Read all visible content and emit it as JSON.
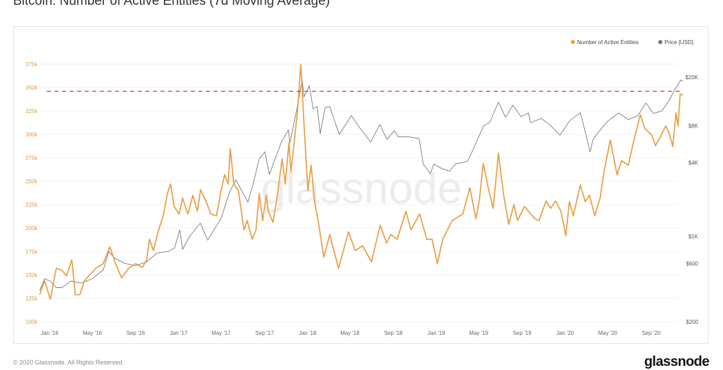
{
  "title": "Bitcoin: Number of Active Entities (7d Moving Average)",
  "footer": "© 2020 Glassnode. All Rights Reserved.",
  "logo": "glassnode",
  "chart_data": {
    "type": "line",
    "title": "Bitcoin: Number of Active Entities (7d Moving Average)",
    "watermark": "glassnode",
    "legend": {
      "placement": "top-right",
      "entries": [
        "Number of Active Entities",
        "Price [USD]"
      ]
    },
    "grid": true,
    "x_ticks": [
      "Jan '16",
      "May '16",
      "Sep '16",
      "Jan '17",
      "May '17",
      "Sep '17",
      "Jan '18",
      "May '18",
      "Sep '18",
      "Jan '19",
      "May '19",
      "Sep '19",
      "Jan '20",
      "May '20",
      "Sep '20"
    ],
    "x_tick_dates": [
      "2016-01-01",
      "2016-05-01",
      "2016-09-01",
      "2017-01-01",
      "2017-05-01",
      "2017-09-01",
      "2018-01-01",
      "2018-05-01",
      "2018-09-01",
      "2019-01-01",
      "2019-05-01",
      "2019-09-01",
      "2020-01-01",
      "2020-05-01",
      "2020-09-01"
    ],
    "y_left": {
      "ylim": [
        100000,
        375000
      ],
      "scale": "linear",
      "ticks": [
        "100k",
        "125k",
        "150k",
        "175k",
        "200k",
        "225k",
        "250k",
        "275k",
        "300k",
        "325k",
        "350k",
        "375k"
      ],
      "tick_values": [
        100000,
        125000,
        150000,
        175000,
        200000,
        225000,
        250000,
        275000,
        300000,
        325000,
        350000,
        375000
      ],
      "color": "#e09a3e"
    },
    "y_right": {
      "ylim": [
        200,
        20000
      ],
      "scale": "log",
      "ticks": [
        "$200",
        "$600",
        "$1K",
        "$4K",
        "$8K",
        "$20K"
      ],
      "tick_values": [
        200,
        600,
        1000,
        4000,
        8000,
        20000
      ],
      "color": "#555555"
    },
    "reference_line": {
      "value": 346000,
      "axis": "left",
      "style": "dashed",
      "color": "#d9262c"
    },
    "series": [
      {
        "name": "Number of Active Entities",
        "axis": "left",
        "color": "#e8a04a",
        "x": [
          "2015-12-04",
          "2015-12-18",
          "2016-01-03",
          "2016-01-20",
          "2016-02-05",
          "2016-02-18",
          "2016-03-04",
          "2016-03-14",
          "2016-03-27",
          "2016-04-09",
          "2016-05-11",
          "2016-06-01",
          "2016-06-20",
          "2016-07-04",
          "2016-07-23",
          "2016-08-12",
          "2016-09-01",
          "2016-09-20",
          "2016-10-02",
          "2016-10-10",
          "2016-10-21",
          "2016-11-05",
          "2016-11-18",
          "2016-11-30",
          "2016-12-09",
          "2016-12-19",
          "2017-01-02",
          "2017-01-12",
          "2017-01-27",
          "2017-02-10",
          "2017-02-23",
          "2017-03-04",
          "2017-03-20",
          "2017-04-02",
          "2017-04-18",
          "2017-05-01",
          "2017-05-11",
          "2017-05-21",
          "2017-05-27",
          "2017-06-06",
          "2017-06-19",
          "2017-07-05",
          "2017-07-14",
          "2017-07-28",
          "2017-08-08",
          "2017-08-17",
          "2017-08-27",
          "2017-09-06",
          "2017-09-12",
          "2017-09-25",
          "2017-10-05",
          "2017-10-21",
          "2017-10-30",
          "2017-11-09",
          "2017-11-15",
          "2017-11-23",
          "2017-12-03",
          "2017-12-13",
          "2017-12-22",
          "2018-01-02",
          "2018-01-11",
          "2018-01-21",
          "2018-02-01",
          "2018-02-16",
          "2018-03-05",
          "2018-03-30",
          "2018-04-27",
          "2018-05-16",
          "2018-06-06",
          "2018-07-01",
          "2018-07-26",
          "2018-08-13",
          "2018-08-25",
          "2018-09-12",
          "2018-10-07",
          "2018-10-21",
          "2018-11-15",
          "2018-12-05",
          "2018-12-20",
          "2019-01-04",
          "2019-01-19",
          "2019-02-15",
          "2019-03-17",
          "2019-04-06",
          "2019-04-23",
          "2019-05-03",
          "2019-05-14",
          "2019-05-28",
          "2019-06-11",
          "2019-06-26",
          "2019-07-10",
          "2019-07-25",
          "2019-08-09",
          "2019-08-19",
          "2019-09-08",
          "2019-10-07",
          "2019-10-19",
          "2019-11-08",
          "2019-11-21",
          "2019-12-05",
          "2019-12-20",
          "2020-01-03",
          "2020-01-13",
          "2020-01-24",
          "2020-02-13",
          "2020-02-27",
          "2020-03-10",
          "2020-03-25",
          "2020-04-09",
          "2020-04-21",
          "2020-05-08",
          "2020-05-27",
          "2020-06-09",
          "2020-06-28",
          "2020-07-11",
          "2020-08-01",
          "2020-08-14",
          "2020-09-03",
          "2020-09-13",
          "2020-09-25",
          "2020-10-12",
          "2020-10-22",
          "2020-11-01",
          "2020-11-10",
          "2020-11-16",
          "2020-11-22",
          "2020-11-30"
        ],
        "y": [
          129000,
          144000,
          124000,
          157000,
          155000,
          149000,
          166000,
          129000,
          129000,
          144000,
          157000,
          162000,
          180000,
          164000,
          147000,
          157000,
          162000,
          158000,
          166000,
          188000,
          176000,
          198000,
          213000,
          237000,
          247000,
          223000,
          215000,
          232000,
          215000,
          235000,
          218000,
          241000,
          228000,
          215000,
          213000,
          240000,
          257000,
          247000,
          285000,
          247000,
          240000,
          198000,
          208000,
          188000,
          198000,
          237000,
          208000,
          235000,
          218000,
          206000,
          228000,
          274000,
          247000,
          291000,
          260000,
          287000,
          323000,
          375000,
          311000,
          240000,
          267000,
          228000,
          206000,
          169000,
          193000,
          157000,
          196000,
          176000,
          181000,
          164000,
          203000,
          184000,
          193000,
          188000,
          218000,
          198000,
          215000,
          188000,
          188000,
          162000,
          188000,
          208000,
          215000,
          243000,
          210000,
          230000,
          269000,
          243000,
          221000,
          280000,
          237000,
          204000,
          225000,
          208000,
          223000,
          210000,
          208000,
          229000,
          221000,
          229000,
          218000,
          192000,
          228000,
          213000,
          246000,
          228000,
          235000,
          213000,
          232000,
          262000,
          294000,
          257000,
          272000,
          267000,
          289000,
          321000,
          306000,
          299000,
          288000,
          296000,
          309000,
          301000,
          287000,
          323000,
          309000,
          343000,
          342000
        ]
      },
      {
        "name": "Price [USD]",
        "axis": "right",
        "color": "#777777",
        "x": [
          "2015-12-04",
          "2015-12-18",
          "2016-01-03",
          "2016-01-20",
          "2016-02-05",
          "2016-03-01",
          "2016-04-01",
          "2016-05-01",
          "2016-06-01",
          "2016-06-17",
          "2016-07-01",
          "2016-08-01",
          "2016-09-01",
          "2016-10-01",
          "2016-11-01",
          "2016-12-01",
          "2016-12-20",
          "2017-01-04",
          "2017-01-12",
          "2017-02-01",
          "2017-03-03",
          "2017-03-24",
          "2017-04-15",
          "2017-05-01",
          "2017-05-25",
          "2017-06-12",
          "2017-07-16",
          "2017-08-01",
          "2017-08-17",
          "2017-09-02",
          "2017-09-15",
          "2017-10-01",
          "2017-10-20",
          "2017-11-08",
          "2017-11-12",
          "2017-11-29",
          "2017-12-17",
          "2017-12-22",
          "2018-01-06",
          "2018-01-17",
          "2018-01-28",
          "2018-02-06",
          "2018-02-20",
          "2018-03-05",
          "2018-04-01",
          "2018-05-05",
          "2018-06-01",
          "2018-06-29",
          "2018-07-25",
          "2018-08-14",
          "2018-09-04",
          "2018-09-15",
          "2018-10-15",
          "2018-11-13",
          "2018-11-25",
          "2018-12-15",
          "2018-12-25",
          "2019-01-15",
          "2019-02-07",
          "2019-02-24",
          "2019-03-30",
          "2019-04-15",
          "2019-05-15",
          "2019-06-01",
          "2019-06-26",
          "2019-07-16",
          "2019-08-06",
          "2019-08-29",
          "2019-09-19",
          "2019-09-25",
          "2019-10-25",
          "2019-11-20",
          "2019-12-17",
          "2020-01-14",
          "2020-02-13",
          "2020-03-12",
          "2020-03-20",
          "2020-04-06",
          "2020-04-30",
          "2020-06-01",
          "2020-06-27",
          "2020-07-25",
          "2020-08-17",
          "2020-09-07",
          "2020-10-01",
          "2020-10-21",
          "2020-11-05",
          "2020-11-24",
          "2020-11-30"
        ],
        "y": [
          360,
          450,
          430,
          380,
          380,
          430,
          415,
          450,
          530,
          750,
          670,
          600,
          575,
          615,
          730,
          750,
          800,
          1130,
          780,
          1000,
          1280,
          930,
          1180,
          1400,
          2300,
          2900,
          1900,
          2750,
          4300,
          4900,
          3200,
          4300,
          6000,
          7400,
          5800,
          10000,
          19000,
          13800,
          17000,
          11000,
          11500,
          6900,
          11300,
          11500,
          6800,
          9700,
          7500,
          5900,
          8200,
          6200,
          7300,
          6500,
          6500,
          6300,
          3900,
          3250,
          3900,
          3600,
          3400,
          3900,
          4100,
          5100,
          8000,
          8500,
          12500,
          9400,
          11800,
          9500,
          10200,
          8500,
          9200,
          8100,
          6700,
          8800,
          10300,
          4900,
          6200,
          7200,
          8700,
          10200,
          9000,
          9700,
          12300,
          10100,
          10600,
          12800,
          15500,
          19000,
          18500
        ]
      }
    ]
  }
}
